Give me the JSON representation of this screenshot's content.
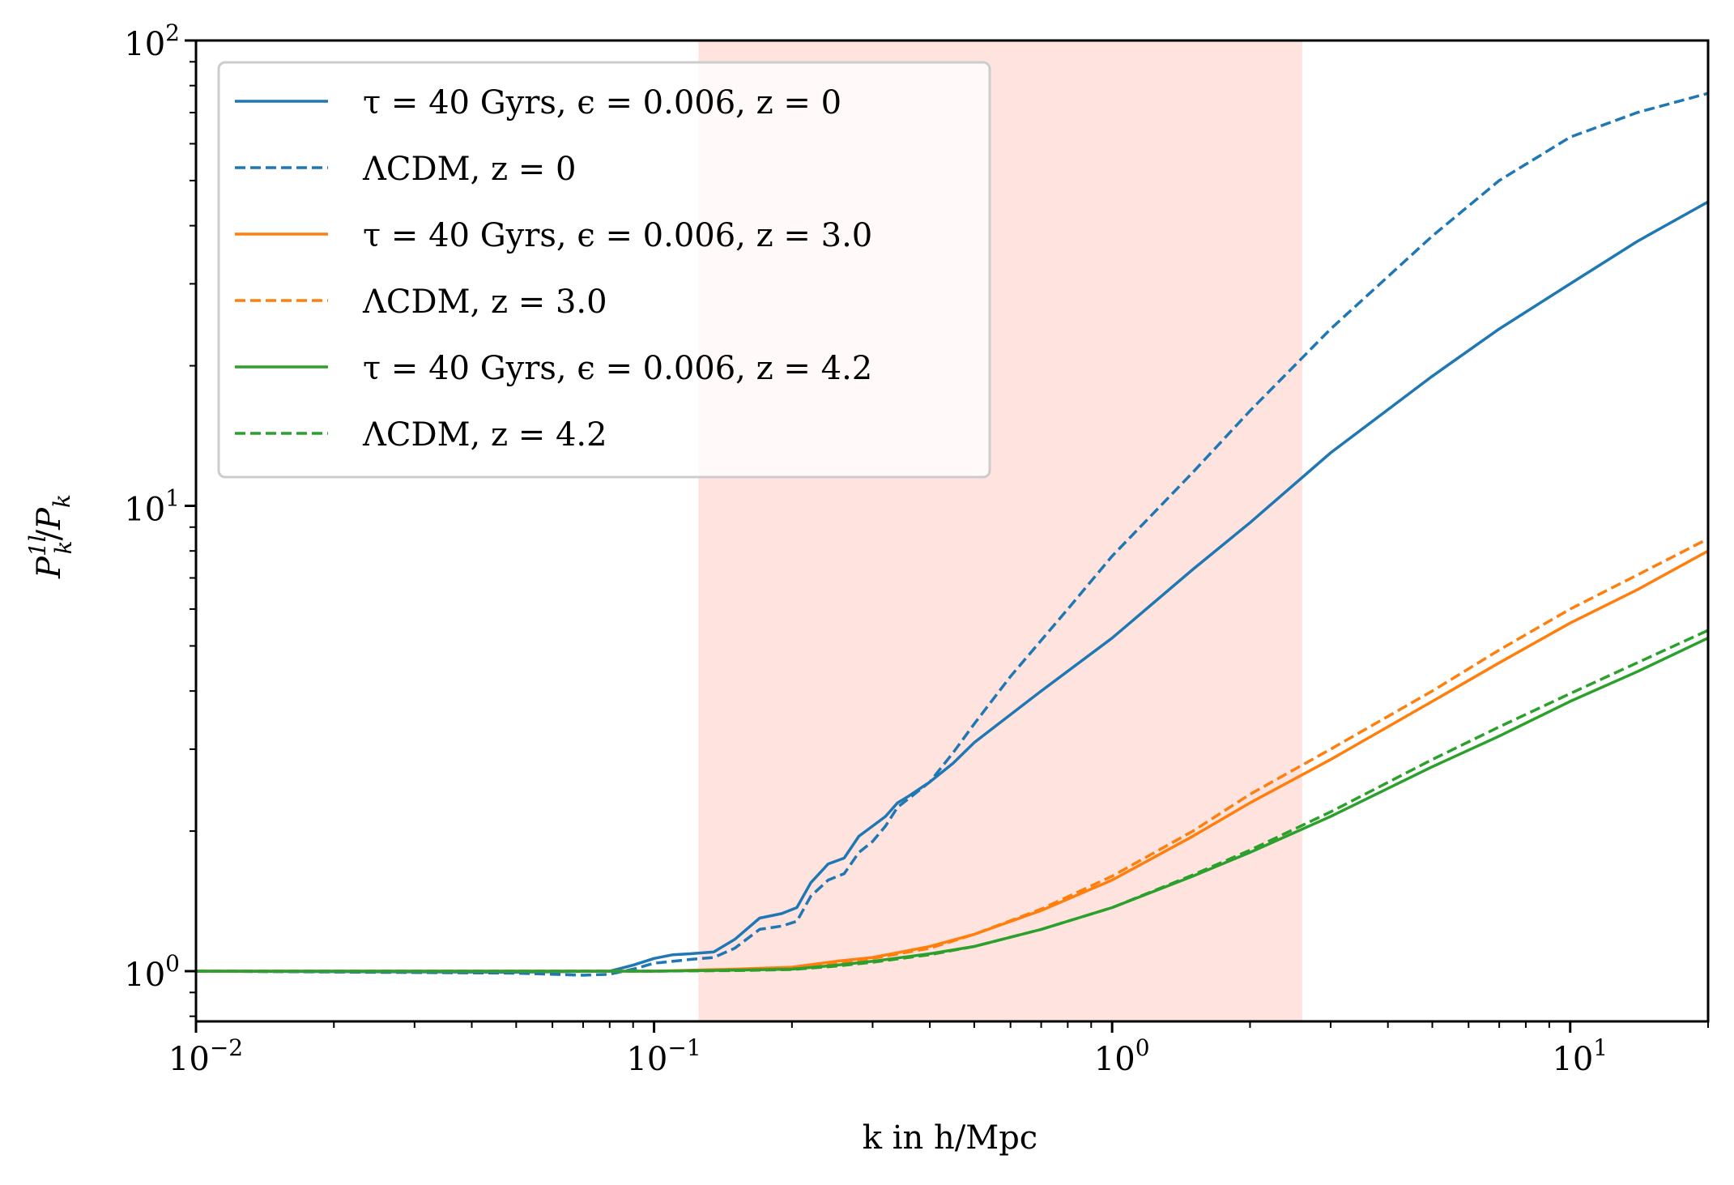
{
  "chart_data": {
    "type": "line",
    "xscale": "log",
    "yscale": "log",
    "xlim": [
      0.01,
      20
    ],
    "ylim": [
      0.78,
      100
    ],
    "xlabel": "k in h/Mpc",
    "ylabel": "P_k^1l / P_k",
    "ylabel_main": "P",
    "ylabel_sup": "1l",
    "ylabel_sub": "k",
    "ylabel_div": "/",
    "ylabel_main2": "P",
    "ylabel_sub2": "k",
    "x_ticks": [
      {
        "base": "10",
        "exp": "−2",
        "value": 0.01
      },
      {
        "base": "10",
        "exp": "−1",
        "value": 0.1
      },
      {
        "base": "10",
        "exp": "0",
        "value": 1
      },
      {
        "base": "10",
        "exp": "1",
        "value": 10
      }
    ],
    "y_ticks": [
      {
        "base": "10",
        "exp": "0",
        "value": 1
      },
      {
        "base": "10",
        "exp": "1",
        "value": 10
      },
      {
        "base": "10",
        "exp": "2",
        "value": 100
      }
    ],
    "shaded_region": {
      "x_from": 0.125,
      "x_to": 2.6,
      "color": "#ffe3df"
    },
    "legend_position": "upper-left",
    "series": [
      {
        "name": "τ = 40 Gyrs, ϵ = 0.006, z = 0",
        "color": "#1f77b4",
        "dash": "solid",
        "x": [
          0.01,
          0.05,
          0.08,
          0.09,
          0.1,
          0.11,
          0.12,
          0.135,
          0.15,
          0.17,
          0.19,
          0.205,
          0.22,
          0.24,
          0.26,
          0.28,
          0.3,
          0.32,
          0.34,
          0.36,
          0.4,
          0.45,
          0.5,
          0.7,
          1.0,
          1.5,
          2.0,
          3.0,
          5.0,
          7.0,
          10.0,
          14.0,
          20.0
        ],
        "y": [
          1.0,
          0.995,
          1.0,
          1.03,
          1.065,
          1.085,
          1.09,
          1.1,
          1.17,
          1.3,
          1.33,
          1.37,
          1.55,
          1.7,
          1.75,
          1.95,
          2.05,
          2.15,
          2.3,
          2.38,
          2.55,
          2.8,
          3.1,
          4.0,
          5.2,
          7.3,
          9.2,
          13.0,
          19.0,
          24.0,
          30.0,
          37.0,
          45.0
        ]
      },
      {
        "name": "ΛCDM, z = 0",
        "color": "#1f77b4",
        "dash": "dashed",
        "x": [
          0.01,
          0.05,
          0.07,
          0.08,
          0.09,
          0.1,
          0.11,
          0.12,
          0.135,
          0.15,
          0.17,
          0.19,
          0.205,
          0.22,
          0.24,
          0.26,
          0.28,
          0.3,
          0.32,
          0.34,
          0.36,
          0.4,
          0.45,
          0.5,
          0.6,
          0.8,
          1.0,
          1.5,
          2.0,
          3.0,
          5.0,
          7.0,
          10.0,
          14.0,
          20.0
        ],
        "y": [
          1.0,
          0.99,
          0.98,
          0.985,
          1.01,
          1.04,
          1.05,
          1.06,
          1.07,
          1.12,
          1.23,
          1.25,
          1.28,
          1.45,
          1.57,
          1.62,
          1.8,
          1.9,
          2.05,
          2.25,
          2.35,
          2.55,
          2.95,
          3.4,
          4.3,
          6.0,
          7.8,
          11.8,
          16.0,
          24.0,
          38.0,
          50.0,
          62.0,
          70.0,
          77.0
        ]
      },
      {
        "name": "τ = 40 Gyrs, ϵ = 0.006, z = 3.0",
        "color": "#ff7f0e",
        "dash": "solid",
        "x": [
          0.01,
          0.1,
          0.15,
          0.2,
          0.25,
          0.3,
          0.4,
          0.5,
          0.7,
          1.0,
          1.5,
          2.0,
          3.0,
          5.0,
          7.0,
          10.0,
          14.0,
          20.0
        ],
        "y": [
          1.0,
          1.0,
          1.01,
          1.02,
          1.05,
          1.07,
          1.13,
          1.2,
          1.35,
          1.57,
          1.95,
          2.3,
          2.85,
          3.8,
          4.6,
          5.6,
          6.6,
          8.0
        ]
      },
      {
        "name": "ΛCDM, z = 3.0",
        "color": "#ff7f0e",
        "dash": "dashed",
        "x": [
          0.01,
          0.1,
          0.15,
          0.2,
          0.25,
          0.3,
          0.4,
          0.5,
          0.7,
          1.0,
          1.5,
          2.0,
          3.0,
          5.0,
          7.0,
          10.0,
          14.0,
          20.0
        ],
        "y": [
          1.0,
          1.0,
          1.005,
          1.015,
          1.04,
          1.065,
          1.12,
          1.2,
          1.36,
          1.6,
          2.0,
          2.4,
          3.0,
          4.0,
          4.9,
          6.0,
          7.1,
          8.5
        ]
      },
      {
        "name": "τ = 40 Gyrs, ϵ = 0.006, z = 4.2",
        "color": "#2ca02c",
        "dash": "solid",
        "x": [
          0.01,
          0.1,
          0.15,
          0.2,
          0.25,
          0.3,
          0.4,
          0.5,
          0.7,
          1.0,
          1.5,
          2.0,
          3.0,
          5.0,
          7.0,
          10.0,
          14.0,
          20.0
        ],
        "y": [
          1.0,
          1.0,
          1.005,
          1.01,
          1.03,
          1.05,
          1.09,
          1.13,
          1.23,
          1.37,
          1.6,
          1.8,
          2.15,
          2.75,
          3.2,
          3.8,
          4.4,
          5.2
        ]
      },
      {
        "name": "ΛCDM, z = 4.2",
        "color": "#2ca02c",
        "dash": "dashed",
        "x": [
          0.01,
          0.1,
          0.15,
          0.2,
          0.25,
          0.3,
          0.4,
          0.5,
          0.7,
          1.0,
          1.5,
          2.0,
          3.0,
          5.0,
          7.0,
          10.0,
          14.0,
          20.0
        ],
        "y": [
          1.0,
          1.0,
          1.003,
          1.008,
          1.025,
          1.045,
          1.085,
          1.13,
          1.23,
          1.37,
          1.61,
          1.82,
          2.2,
          2.85,
          3.35,
          3.95,
          4.6,
          5.4
        ]
      }
    ],
    "legend": [
      {
        "pre": "τ = 40 ",
        "mid": "Gyrs",
        "post": ", ϵ = 0.006, z = 0"
      },
      {
        "pre": "ΛCDM, z = 0",
        "mid": "",
        "post": ""
      },
      {
        "pre": "τ = 40 ",
        "mid": "Gyrs",
        "post": ", ϵ = 0.006, z = 3.0"
      },
      {
        "pre": "ΛCDM, z = 3.0",
        "mid": "",
        "post": ""
      },
      {
        "pre": "τ = 40 ",
        "mid": "Gyrs",
        "post": ", ϵ = 0.006, z = 4.2"
      },
      {
        "pre": "ΛCDM, z = 4.2",
        "mid": "",
        "post": ""
      }
    ],
    "colors": {
      "tab_blue": "#1f77b4",
      "tab_orange": "#ff7f0e",
      "tab_green": "#2ca02c"
    }
  }
}
